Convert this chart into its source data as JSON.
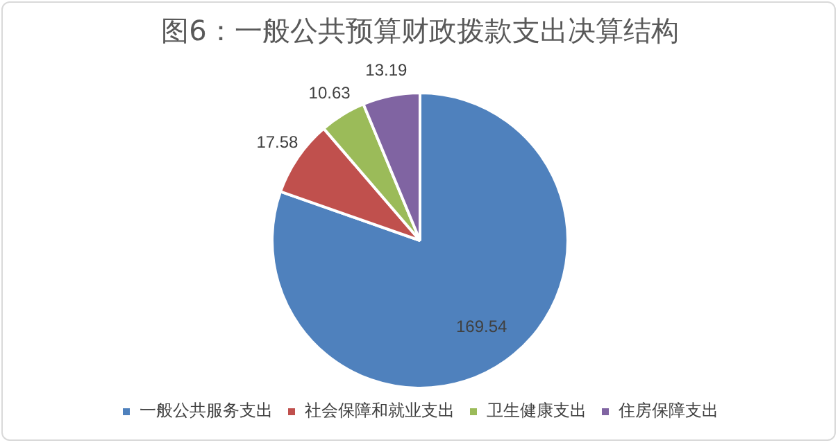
{
  "chart_data": {
    "type": "pie",
    "title": "图6：一般公共预算财政拨款支出决算结构",
    "categories": [
      "一般公共服务支出",
      "社会保障和就业支出",
      "卫生健康支出",
      "住房保障支出"
    ],
    "values": [
      169.54,
      17.58,
      10.63,
      13.19
    ],
    "colors": [
      "#4f81bd",
      "#c0504d",
      "#9bbb59",
      "#8064a2"
    ],
    "data_labels": true,
    "legend": "bottom"
  }
}
